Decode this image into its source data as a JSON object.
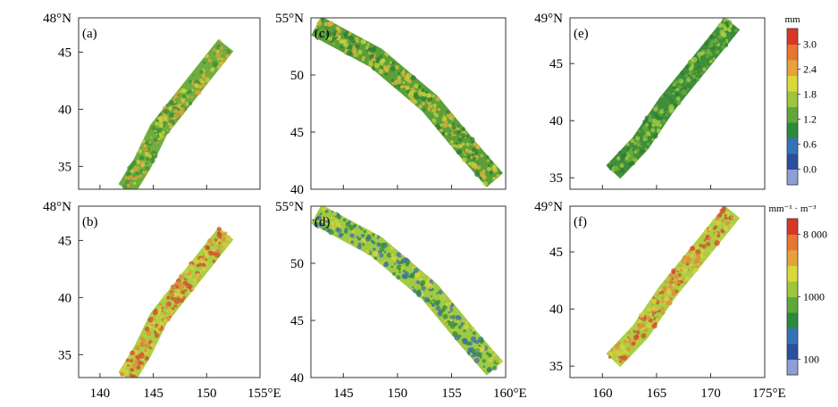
{
  "chart_data": [
    {
      "type": "heatmap",
      "panel_label": "(a)",
      "variable": "precipitation swath",
      "lon_range": [
        138,
        155
      ],
      "lat_range": [
        33,
        48
      ],
      "yticks": [
        {
          "v": 35,
          "label": "35"
        },
        {
          "v": 40,
          "label": "40"
        },
        {
          "v": 45,
          "label": "45"
        },
        {
          "v": 48,
          "label": "48°N"
        }
      ],
      "xticks": [
        {
          "v": 140,
          "label": ""
        },
        {
          "v": 145,
          "label": ""
        },
        {
          "v": 150,
          "label": ""
        },
        {
          "v": 155,
          "label": ""
        }
      ],
      "swath_path": [
        [
          151.8,
          45.6
        ],
        [
          145.5,
          38.2
        ],
        [
          144.0,
          35.3
        ],
        [
          142.5,
          33.0
        ]
      ],
      "swath_halfwidth_deg": 0.9,
      "dominant_color": "#6fae3e",
      "accent_colors": [
        "#e3a23a",
        "#c9d43d",
        "#3b8e3a"
      ]
    },
    {
      "type": "heatmap",
      "panel_label": "(b)",
      "variable": "reflectivity swath",
      "lon_range": [
        138,
        155
      ],
      "lat_range": [
        33,
        48
      ],
      "yticks": [
        {
          "v": 35,
          "label": "35"
        },
        {
          "v": 40,
          "label": "40"
        },
        {
          "v": 45,
          "label": "45"
        },
        {
          "v": 48,
          "label": "48°N"
        }
      ],
      "xticks": [
        {
          "v": 140,
          "label": "140"
        },
        {
          "v": 145,
          "label": "145"
        },
        {
          "v": 150,
          "label": "150"
        },
        {
          "v": 155,
          "label": "155°E"
        }
      ],
      "swath_path": [
        [
          151.8,
          45.6
        ],
        [
          145.5,
          38.2
        ],
        [
          144.0,
          35.3
        ],
        [
          142.5,
          33.0
        ]
      ],
      "swath_halfwidth_deg": 0.9,
      "dominant_color": "#a9cf45",
      "accent_colors": [
        "#e48b3a",
        "#d9d23f",
        "#d44a2f"
      ]
    },
    {
      "type": "heatmap",
      "panel_label": "(c)",
      "variable": "precipitation swath",
      "lon_range": [
        142,
        160
      ],
      "lat_range": [
        40,
        55
      ],
      "yticks": [
        {
          "v": 40,
          "label": "40"
        },
        {
          "v": 45,
          "label": "45"
        },
        {
          "v": 50,
          "label": "50"
        },
        {
          "v": 55,
          "label": "55°N"
        }
      ],
      "xticks": [
        {
          "v": 145,
          "label": ""
        },
        {
          "v": 150,
          "label": ""
        },
        {
          "v": 155,
          "label": ""
        },
        {
          "v": 160,
          "label": ""
        }
      ],
      "swath_path": [
        [
          142.5,
          54.3
        ],
        [
          148.0,
          51.5
        ],
        [
          153.0,
          47.5
        ],
        [
          156.5,
          43.5
        ],
        [
          159.0,
          40.8
        ]
      ],
      "swath_halfwidth_deg": 1.0,
      "dominant_color": "#5aa03a",
      "accent_colors": [
        "#c8d23c",
        "#e0b53c",
        "#2f7e34"
      ]
    },
    {
      "type": "heatmap",
      "panel_label": "(d)",
      "variable": "reflectivity swath",
      "lon_range": [
        142,
        160
      ],
      "lat_range": [
        40,
        55
      ],
      "yticks": [
        {
          "v": 40,
          "label": "40"
        },
        {
          "v": 45,
          "label": "45"
        },
        {
          "v": 50,
          "label": "50"
        },
        {
          "v": 55,
          "label": "55°N"
        }
      ],
      "xticks": [
        {
          "v": 145,
          "label": "145"
        },
        {
          "v": 150,
          "label": "150"
        },
        {
          "v": 155,
          "label": "155"
        },
        {
          "v": 160,
          "label": "160°E"
        }
      ],
      "swath_path": [
        [
          142.5,
          54.3
        ],
        [
          148.0,
          51.5
        ],
        [
          153.0,
          47.5
        ],
        [
          156.5,
          43.5
        ],
        [
          159.0,
          40.8
        ]
      ],
      "swath_halfwidth_deg": 1.0,
      "dominant_color": "#9fca44",
      "accent_colors": [
        "#3f6fae",
        "#2f8b3a",
        "#d9d23f"
      ]
    },
    {
      "type": "heatmap",
      "panel_label": "(e)",
      "variable": "precipitation swath",
      "lon_range": [
        157,
        175
      ],
      "lat_range": [
        34,
        49
      ],
      "yticks": [
        {
          "v": 35,
          "label": "35"
        },
        {
          "v": 40,
          "label": "40"
        },
        {
          "v": 45,
          "label": "45"
        },
        {
          "v": 49,
          "label": "49°N"
        }
      ],
      "xticks": [
        {
          "v": 160,
          "label": ""
        },
        {
          "v": 165,
          "label": ""
        },
        {
          "v": 170,
          "label": ""
        },
        {
          "v": 175,
          "label": ""
        }
      ],
      "swath_path": [
        [
          172.0,
          48.5
        ],
        [
          166.0,
          41.5
        ],
        [
          163.5,
          38.0
        ],
        [
          161.0,
          35.5
        ]
      ],
      "swath_halfwidth_deg": 0.9,
      "dominant_color": "#3f8f3a",
      "accent_colors": [
        "#6fae3e",
        "#a9cf45",
        "#2f7e34"
      ]
    },
    {
      "type": "heatmap",
      "panel_label": "(f)",
      "variable": "reflectivity swath",
      "lon_range": [
        157,
        175
      ],
      "lat_range": [
        34,
        49
      ],
      "yticks": [
        {
          "v": 35,
          "label": "35"
        },
        {
          "v": 40,
          "label": "40"
        },
        {
          "v": 45,
          "label": "45"
        },
        {
          "v": 49,
          "label": "49°N"
        }
      ],
      "xticks": [
        {
          "v": 160,
          "label": "160"
        },
        {
          "v": 165,
          "label": "165"
        },
        {
          "v": 170,
          "label": "170"
        },
        {
          "v": 175,
          "label": "175°E"
        }
      ],
      "swath_path": [
        [
          172.0,
          48.5
        ],
        [
          166.0,
          41.5
        ],
        [
          163.5,
          38.0
        ],
        [
          161.0,
          35.5
        ]
      ],
      "swath_halfwidth_deg": 0.9,
      "dominant_color": "#a9cf45",
      "accent_colors": [
        "#d9d23f",
        "#e48b3a",
        "#d44a2f"
      ]
    }
  ],
  "colorbars": [
    {
      "unit": "mm",
      "colors": [
        "#8d9fd6",
        "#2a4ea0",
        "#3573b8",
        "#2a8a3d",
        "#5ea83a",
        "#9cc63b",
        "#d8d83a",
        "#e8a23a",
        "#e8762e",
        "#d83828"
      ],
      "ticks": [
        "0.0",
        "0.6",
        "1.2",
        "1.8",
        "2.4",
        "3.0"
      ]
    },
    {
      "unit": "mm⁻¹ · m⁻³",
      "colors": [
        "#8d9fd6",
        "#2a4ea0",
        "#3573b8",
        "#2a8a3d",
        "#5ea83a",
        "#9cc63b",
        "#d8d83a",
        "#e8a23a",
        "#e8762e",
        "#d83828"
      ],
      "ticks": [
        "100",
        "1000",
        "8 000"
      ]
    }
  ]
}
